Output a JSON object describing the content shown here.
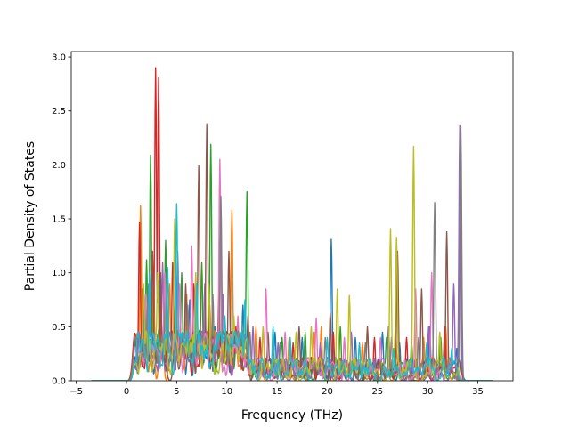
{
  "chart_data": {
    "type": "line",
    "title": "",
    "xlabel": "Frequency (THz)",
    "ylabel": "Partial Density of States",
    "xlim": [
      -5.5,
      38.5
    ],
    "ylim": [
      0,
      3.05
    ],
    "xticks": [
      -5,
      0,
      5,
      10,
      15,
      20,
      25,
      30,
      35
    ],
    "yticks": [
      0.0,
      0.5,
      1.0,
      1.5,
      2.0,
      2.5,
      3.0
    ],
    "xtick_labels": [
      "−5",
      "0",
      "5",
      "10",
      "15",
      "20",
      "25",
      "30",
      "35"
    ],
    "ytick_labels": [
      "0.0",
      "0.5",
      "1.0",
      "1.5",
      "2.0",
      "2.5",
      "3.0"
    ],
    "grid": false,
    "legend": "none",
    "x_range_of_curves": [
      -3.5,
      36.5
    ],
    "palette": [
      "#1f77b4",
      "#ff7f0e",
      "#2ca02c",
      "#d62728",
      "#9467bd",
      "#8c564b",
      "#e377c2",
      "#7f7f7f",
      "#bcbd22",
      "#17becf"
    ],
    "series": [
      {
        "color": "#1f77b4",
        "peaks": [
          [
            1.6,
            0.85
          ],
          [
            3.3,
            0.9
          ],
          [
            4.9,
            1.0
          ],
          [
            6.3,
            0.75
          ],
          [
            8.8,
            0.5
          ],
          [
            11.6,
            0.7
          ],
          [
            14.8,
            0.45
          ],
          [
            17.5,
            0.4
          ],
          [
            20.4,
            1.31
          ],
          [
            22.8,
            0.4
          ],
          [
            25.5,
            0.45
          ],
          [
            27.2,
            0.35
          ],
          [
            30.2,
            0.5
          ],
          [
            32.9,
            0.3
          ]
        ]
      },
      {
        "color": "#ff7f0e",
        "peaks": [
          [
            1.4,
            1.62
          ],
          [
            2.7,
            1.0
          ],
          [
            4.3,
            0.9
          ],
          [
            6.0,
            0.8
          ],
          [
            8.3,
            0.7
          ],
          [
            10.5,
            1.58
          ],
          [
            12.9,
            0.5
          ],
          [
            16.2,
            0.4
          ],
          [
            18.7,
            0.45
          ],
          [
            19.4,
            0.5
          ],
          [
            23.5,
            0.35
          ],
          [
            26.8,
            0.5
          ],
          [
            29.6,
            0.4
          ],
          [
            31.8,
            0.5
          ]
        ]
      },
      {
        "color": "#2ca02c",
        "peaks": [
          [
            2.0,
            1.12
          ],
          [
            2.4,
            2.09
          ],
          [
            3.9,
            1.3
          ],
          [
            5.5,
            1.0
          ],
          [
            7.5,
            1.1
          ],
          [
            8.4,
            2.19
          ],
          [
            12.0,
            1.75
          ],
          [
            15.5,
            0.4
          ],
          [
            17.8,
            0.45
          ],
          [
            21.3,
            0.5
          ],
          [
            25.9,
            0.4
          ],
          [
            28.4,
            0.35
          ],
          [
            31.3,
            0.4
          ]
        ]
      },
      {
        "color": "#d62728",
        "peaks": [
          [
            1.3,
            1.47
          ],
          [
            2.9,
            2.9
          ],
          [
            3.2,
            2.81
          ],
          [
            4.6,
            1.1
          ],
          [
            6.7,
            0.9
          ],
          [
            9.2,
            0.8
          ],
          [
            10.9,
            0.5
          ],
          [
            13.3,
            0.4
          ],
          [
            16.6,
            0.35
          ],
          [
            20.6,
            0.45
          ],
          [
            24.7,
            0.4
          ],
          [
            27.9,
            0.4
          ],
          [
            31.7,
            0.5
          ]
        ]
      },
      {
        "color": "#9467bd",
        "peaks": [
          [
            2.2,
            0.9
          ],
          [
            3.6,
            1.1
          ],
          [
            5.1,
            1.2
          ],
          [
            7.8,
            0.9
          ],
          [
            9.6,
            0.8
          ],
          [
            12.6,
            0.5
          ],
          [
            15.1,
            0.35
          ],
          [
            19.3,
            0.35
          ],
          [
            22.4,
            0.45
          ],
          [
            26.4,
            0.4
          ],
          [
            30.1,
            0.5
          ],
          [
            32.6,
            0.9
          ],
          [
            33.2,
            2.37
          ]
        ]
      },
      {
        "color": "#8c564b",
        "peaks": [
          [
            2.6,
            1.2
          ],
          [
            3.4,
            1.0
          ],
          [
            5.9,
            0.9
          ],
          [
            7.2,
            1.99
          ],
          [
            8.0,
            2.38
          ],
          [
            10.2,
            1.2
          ],
          [
            12.1,
            0.6
          ],
          [
            14.1,
            0.45
          ],
          [
            17.2,
            0.5
          ],
          [
            20.3,
            0.63
          ],
          [
            24.0,
            0.5
          ],
          [
            27.0,
            1.2
          ],
          [
            29.4,
            0.85
          ],
          [
            31.9,
            1.38
          ]
        ]
      },
      {
        "color": "#e377c2",
        "peaks": [
          [
            1.9,
            0.8
          ],
          [
            3.8,
            1.0
          ],
          [
            5.3,
            0.9
          ],
          [
            6.5,
            1.25
          ],
          [
            9.3,
            2.05
          ],
          [
            11.1,
            0.6
          ],
          [
            13.9,
            0.85
          ],
          [
            15.8,
            0.45
          ],
          [
            18.9,
            0.58
          ],
          [
            21.7,
            0.4
          ],
          [
            25.3,
            0.4
          ],
          [
            28.8,
            0.85
          ],
          [
            30.4,
            1.0
          ]
        ]
      },
      {
        "color": "#7f7f7f",
        "peaks": [
          [
            2.1,
            0.7
          ],
          [
            4.0,
            0.8
          ],
          [
            6.1,
            0.7
          ],
          [
            8.6,
            0.8
          ],
          [
            9.4,
            1.71
          ],
          [
            12.3,
            0.45
          ],
          [
            15.3,
            0.35
          ],
          [
            19.8,
            0.4
          ],
          [
            23.8,
            0.35
          ],
          [
            26.1,
            0.5
          ],
          [
            29.1,
            0.4
          ],
          [
            30.7,
            1.65
          ],
          [
            33.3,
            2.36
          ]
        ]
      },
      {
        "color": "#bcbd22",
        "peaks": [
          [
            1.7,
            0.9
          ],
          [
            3.1,
            1.0
          ],
          [
            4.8,
            1.5
          ],
          [
            6.9,
            1.0
          ],
          [
            8.2,
            0.9
          ],
          [
            10.7,
            0.6
          ],
          [
            13.6,
            0.5
          ],
          [
            16.9,
            0.45
          ],
          [
            18.4,
            0.5
          ],
          [
            21.0,
            0.85
          ],
          [
            22.2,
            0.79
          ],
          [
            26.3,
            1.41
          ],
          [
            26.9,
            1.33
          ],
          [
            28.6,
            2.17
          ],
          [
            31.2,
            0.45
          ]
        ]
      },
      {
        "color": "#17becf",
        "peaks": [
          [
            2.3,
            1.0
          ],
          [
            4.1,
            1.05
          ],
          [
            5.0,
            1.64
          ],
          [
            7.0,
            0.9
          ],
          [
            9.8,
            0.6
          ],
          [
            11.8,
            0.75
          ],
          [
            14.6,
            0.5
          ],
          [
            16.3,
            0.4
          ],
          [
            20.0,
            0.4
          ],
          [
            23.2,
            0.35
          ],
          [
            26.6,
            0.3
          ],
          [
            29.9,
            0.35
          ],
          [
            32.4,
            0.3
          ]
        ]
      }
    ]
  }
}
